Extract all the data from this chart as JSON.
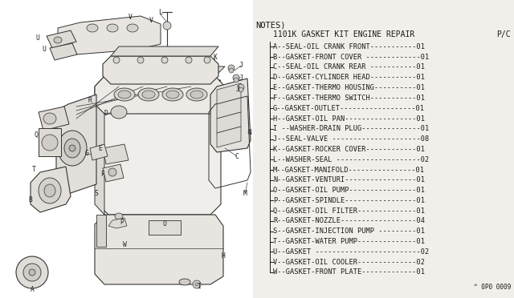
{
  "bg_color": "#f2efea",
  "diagram_bg": "#ffffff",
  "title": "NOTES)",
  "kit_title": "1101K GASKET KIT ENGINE REPAIR",
  "pc_label": "P/C",
  "parts": [
    [
      "A",
      "SEAL-OIL CRANK FRONT",
      "01"
    ],
    [
      "B",
      "GASKET-FRONT COVER",
      "01"
    ],
    [
      "C",
      "SEAL-OIL CRANK REAR",
      "01"
    ],
    [
      "D",
      "GASKET-CYLINDER HEAD",
      "01"
    ],
    [
      "E",
      "GASKET-THERMO HOUSING",
      "01"
    ],
    [
      "F",
      "GASKET-THERMO SWITCH",
      "01"
    ],
    [
      "G",
      "GASKET-OUTLET",
      "01"
    ],
    [
      "H",
      "GASKET-OIL PAN",
      "01"
    ],
    [
      "I",
      " WASHER-DRAIN PLUG",
      "01"
    ],
    [
      "J",
      "SEAL-VALVE",
      "08"
    ],
    [
      "K",
      "GASKET-ROCKER COVER",
      "01"
    ],
    [
      "L",
      "WASHER-SEAL",
      "02"
    ],
    [
      "M",
      "GASKET-MANIFOLD",
      "01"
    ],
    [
      "N",
      "GASKET-VENTURI",
      "01"
    ],
    [
      "O",
      "GASKET-OIL PUMP",
      "01"
    ],
    [
      "P",
      "GASKET-SPINDLE",
      "01"
    ],
    [
      "Q",
      "GASKET-OIL FILTER",
      "01"
    ],
    [
      "R",
      "GASKET-NOZZLE",
      "04"
    ],
    [
      "S",
      "GASKET-INJECTION PUMP",
      "01"
    ],
    [
      "T",
      "GASKET-WATER PUMP",
      "01"
    ],
    [
      "U",
      "GASKET",
      "02"
    ],
    [
      "V",
      "GASKET-OIL COOLER",
      "02"
    ],
    [
      "W",
      "GASKET-FRONT PLATE",
      "01"
    ]
  ],
  "part_number": "^ 0P0 0009",
  "text_color": "#1a1a1a",
  "line_color": "#333333",
  "parts_dot_counts": [
    13,
    13,
    11,
    12,
    10,
    11,
    8,
    12,
    11,
    14,
    12,
    12,
    10,
    11,
    10,
    9,
    10,
    9,
    8,
    8,
    16,
    14,
    12
  ],
  "font_size_notes": 7.5,
  "font_size_kit": 7.0,
  "font_size_parts": 6.2,
  "font_size_partnum": 5.5
}
